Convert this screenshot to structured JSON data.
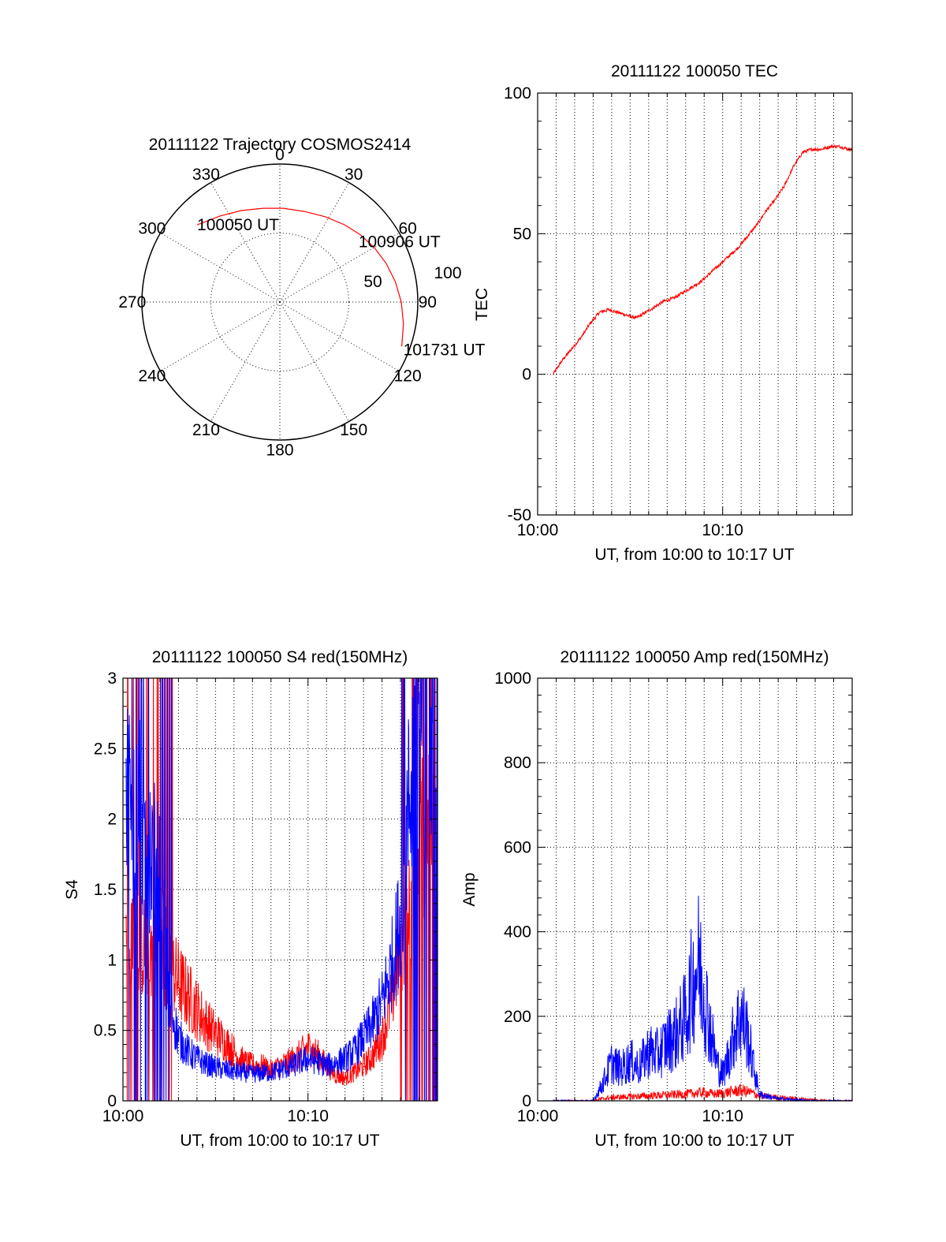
{
  "figure_date": "20111122",
  "chart_data": [
    {
      "id": "polar",
      "type": "polar",
      "title": "20111122 Trajectory COSMOS2414",
      "angle_labels": [
        "0",
        "30",
        "60",
        "90",
        "120",
        "150",
        "180",
        "210",
        "240",
        "270",
        "300",
        "330"
      ],
      "radial_labels": [
        "50",
        "100"
      ],
      "rlim": [
        0,
        100
      ],
      "grid": true,
      "series": [
        {
          "color": "#ff0000",
          "points": [
            {
              "az": 313,
              "r": 82
            },
            {
              "az": 325,
              "r": 76
            },
            {
              "az": 337,
              "r": 72
            },
            {
              "az": 350,
              "r": 69
            },
            {
              "az": 2,
              "r": 68
            },
            {
              "az": 15,
              "r": 68
            },
            {
              "az": 28,
              "r": 70
            },
            {
              "az": 40,
              "r": 73
            },
            {
              "az": 50,
              "r": 76
            },
            {
              "az": 60,
              "r": 79
            },
            {
              "az": 70,
              "r": 82
            },
            {
              "az": 80,
              "r": 85
            },
            {
              "az": 90,
              "r": 88
            },
            {
              "az": 100,
              "r": 91
            },
            {
              "az": 110,
              "r": 94
            }
          ]
        }
      ],
      "annotations": [
        {
          "text": "100050 UT",
          "az": 313,
          "r": 82
        },
        {
          "text": "100906 UT",
          "az": 55,
          "r": 78
        },
        {
          "text": "101731 UT",
          "az": 110,
          "r": 94
        }
      ]
    },
    {
      "id": "tec",
      "type": "line",
      "title": "20111122 100050 TEC",
      "xlabel": "UT, from 10:00 to 10:17 UT",
      "ylabel": "TEC",
      "xlim": [
        "10:00",
        "10:17"
      ],
      "xticks": [
        "10:00",
        "10:10"
      ],
      "ylim": [
        -50,
        100
      ],
      "yticks": [
        "-50",
        "0",
        "50",
        "100"
      ],
      "grid": true,
      "series": [
        {
          "color": "#ff0000",
          "x": [
            "10:00:50",
            "10:01:20",
            "10:01:50",
            "10:02:20",
            "10:02:50",
            "10:03:20",
            "10:03:50",
            "10:04:20",
            "10:04:50",
            "10:05:20",
            "10:05:50",
            "10:06:20",
            "10:06:50",
            "10:07:20",
            "10:07:50",
            "10:08:20",
            "10:08:50",
            "10:09:20",
            "10:09:50",
            "10:10:20",
            "10:10:50",
            "10:11:20",
            "10:11:50",
            "10:12:20",
            "10:12:50",
            "10:13:20",
            "10:13:50",
            "10:14:20",
            "10:14:50",
            "10:15:20",
            "10:15:50",
            "10:16:20",
            "10:16:50",
            "10:17:00"
          ],
          "values": [
            0,
            5,
            9,
            13,
            18,
            22,
            23,
            22,
            21,
            20,
            22,
            24,
            26,
            27,
            29,
            31,
            33,
            36,
            39,
            42,
            45,
            49,
            53,
            58,
            62,
            67,
            74,
            79,
            80,
            80,
            81,
            81,
            80,
            80
          ]
        }
      ]
    },
    {
      "id": "s4",
      "type": "line",
      "title": "20111122 100050 S4 red(150MHz)",
      "xlabel": "UT, from 10:00 to 10:17 UT",
      "ylabel": "S4",
      "xlim": [
        "10:00",
        "10:17"
      ],
      "xticks": [
        "10:00",
        "10:10"
      ],
      "ylim": [
        0,
        3
      ],
      "yticks": [
        "0",
        "0.5",
        "1",
        "1.5",
        "2",
        "2.5",
        "3"
      ],
      "grid": true,
      "series": [
        {
          "color": "#ff0000",
          "x": [
            "10:00:10",
            "10:01:00",
            "10:02:00",
            "10:02:30",
            "10:03:00",
            "10:03:30",
            "10:04:00",
            "10:04:30",
            "10:05:00",
            "10:05:30",
            "10:06:00",
            "10:06:30",
            "10:07:00",
            "10:07:30",
            "10:08:00",
            "10:08:30",
            "10:09:00",
            "10:09:30",
            "10:10:00",
            "10:10:30",
            "10:11:00",
            "10:11:30",
            "10:12:00",
            "10:12:30",
            "10:13:00",
            "10:13:30",
            "10:14:00",
            "10:14:30",
            "10:15:00",
            "10:15:30",
            "10:16:00",
            "10:16:30",
            "10:17:00"
          ],
          "values": [
            1.2,
            1.1,
            1.05,
            0.95,
            0.85,
            0.75,
            0.65,
            0.55,
            0.48,
            0.42,
            0.35,
            0.28,
            0.25,
            0.25,
            0.22,
            0.25,
            0.28,
            0.32,
            0.38,
            0.33,
            0.25,
            0.18,
            0.16,
            0.2,
            0.25,
            0.32,
            0.45,
            0.7,
            1.1,
            1.4,
            1.8,
            2.1,
            2.3
          ]
        },
        {
          "color": "#0000ff",
          "x": [
            "10:00:10",
            "10:01:00",
            "10:02:00",
            "10:02:30",
            "10:03:00",
            "10:03:30",
            "10:04:00",
            "10:04:30",
            "10:05:00",
            "10:05:30",
            "10:06:00",
            "10:06:30",
            "10:07:00",
            "10:07:30",
            "10:08:00",
            "10:08:30",
            "10:09:00",
            "10:09:30",
            "10:10:00",
            "10:10:30",
            "10:11:00",
            "10:11:30",
            "10:12:00",
            "10:12:30",
            "10:13:00",
            "10:13:30",
            "10:14:00",
            "10:14:30",
            "10:15:00",
            "10:15:30",
            "10:16:00",
            "10:16:30",
            "10:17:00"
          ],
          "values": [
            2.2,
            2.0,
            1.6,
            0.7,
            0.45,
            0.35,
            0.3,
            0.26,
            0.24,
            0.22,
            0.21,
            0.2,
            0.19,
            0.2,
            0.2,
            0.22,
            0.24,
            0.27,
            0.3,
            0.28,
            0.25,
            0.27,
            0.3,
            0.35,
            0.45,
            0.55,
            0.7,
            0.95,
            1.3,
            2.2,
            2.8,
            2.9,
            2.9
          ]
        }
      ]
    },
    {
      "id": "amp",
      "type": "line",
      "title": "20111122 100050 Amp red(150MHz)",
      "xlabel": "UT, from 10:00 to 10:17 UT",
      "ylabel": "Amp",
      "xlim": [
        "10:00",
        "10:17"
      ],
      "xticks": [
        "10:00",
        "10:10"
      ],
      "ylim": [
        0,
        1000
      ],
      "yticks": [
        "0",
        "200",
        "400",
        "600",
        "800",
        "1000"
      ],
      "grid": true,
      "series": [
        {
          "color": "#ff0000",
          "x": [
            "10:00:50",
            "10:02:00",
            "10:03:00",
            "10:03:30",
            "10:04:00",
            "10:05:00",
            "10:06:00",
            "10:07:00",
            "10:08:00",
            "10:08:30",
            "10:09:00",
            "10:09:30",
            "10:10:00",
            "10:10:30",
            "10:11:00",
            "10:11:30",
            "10:12:00",
            "10:13:00",
            "10:14:00",
            "10:15:00",
            "10:16:00",
            "10:17:00"
          ],
          "values": [
            0,
            0,
            0,
            5,
            8,
            10,
            12,
            14,
            16,
            18,
            20,
            16,
            18,
            22,
            25,
            20,
            12,
            8,
            5,
            2,
            0,
            0
          ]
        },
        {
          "color": "#0000ff",
          "x": [
            "10:00:50",
            "10:02:00",
            "10:03:00",
            "10:03:30",
            "10:04:00",
            "10:04:30",
            "10:05:00",
            "10:05:30",
            "10:06:00",
            "10:06:30",
            "10:07:00",
            "10:07:30",
            "10:08:00",
            "10:08:20",
            "10:08:40",
            "10:09:00",
            "10:09:20",
            "10:09:40",
            "10:10:00",
            "10:10:20",
            "10:10:40",
            "10:11:00",
            "10:11:20",
            "10:11:40",
            "10:12:00",
            "10:13:00",
            "10:14:00",
            "10:15:00",
            "10:16:00",
            "10:17:00"
          ],
          "values": [
            0,
            0,
            0,
            40,
            90,
            75,
            95,
            80,
            120,
            110,
            140,
            160,
            200,
            270,
            330,
            260,
            170,
            90,
            60,
            110,
            170,
            200,
            160,
            80,
            15,
            5,
            2,
            0,
            0,
            0
          ]
        }
      ]
    }
  ]
}
